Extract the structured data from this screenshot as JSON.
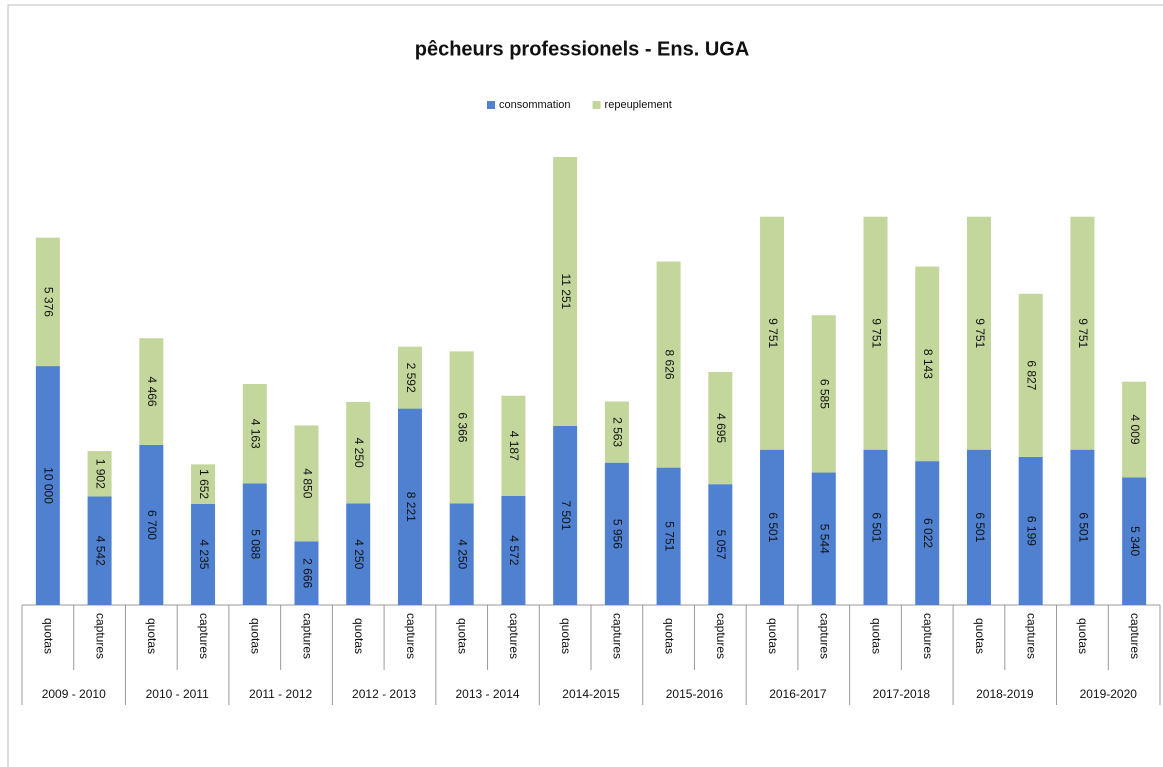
{
  "chart_data": {
    "type": "stacked_bar",
    "title": "pêcheurs professionels - Ens. UGA",
    "groups": [
      "2009 - 2010",
      "2010 - 2011",
      "2011 - 2012",
      "2012 - 2013",
      "2013 - 2014",
      "2014-2015",
      "2015-2016",
      "2016-2017",
      "2017-2018",
      "2018-2019",
      "2019-2020"
    ],
    "categories": [
      "quotas",
      "captures",
      "quotas",
      "captures",
      "quotas",
      "captures",
      "quotas",
      "captures",
      "quotas",
      "captures",
      "quotas",
      "captures",
      "quotas",
      "captures",
      "quotas",
      "captures",
      "quotas",
      "captures",
      "quotas",
      "captures",
      "quotas",
      "captures"
    ],
    "series": [
      {
        "name": "consommation",
        "color": "#4f81d0",
        "values": [
          10000,
          4542,
          6700,
          4235,
          5088,
          2666,
          4250,
          8221,
          4250,
          4572,
          7501,
          5956,
          5751,
          5057,
          6501,
          5544,
          6501,
          6022,
          6501,
          6199,
          6501,
          5340
        ],
        "value_labels": [
          "10 000",
          "4 542",
          "6 700",
          "4 235",
          "5 088",
          "2 666",
          "4 250",
          "8 221",
          "4 250",
          "4 572",
          "7 501",
          "5 956",
          "5 751",
          "5 057",
          "6 501",
          "5 544",
          "6 501",
          "6 022",
          "6 501",
          "6 199",
          "6 501",
          "5 340"
        ]
      },
      {
        "name": "repeuplement",
        "color": "#c3d69b",
        "values": [
          5376,
          1902,
          4466,
          1652,
          4163,
          4850,
          4250,
          2592,
          6366,
          4187,
          11251,
          2563,
          8626,
          4695,
          9751,
          6585,
          9751,
          8143,
          9751,
          6827,
          9751,
          4009
        ],
        "value_labels": [
          "5 376",
          "1 902",
          "4 466",
          "1 652",
          "4 163",
          "4 850",
          "4 250",
          "2 592",
          "6 366",
          "4 187",
          "11 251",
          "2 563",
          "8 626",
          "4 695",
          "9 751",
          "6 585",
          "9 751",
          "8 143",
          "9 751",
          "6 827",
          "9 751",
          "4 009"
        ]
      }
    ],
    "legend": "top"
  }
}
